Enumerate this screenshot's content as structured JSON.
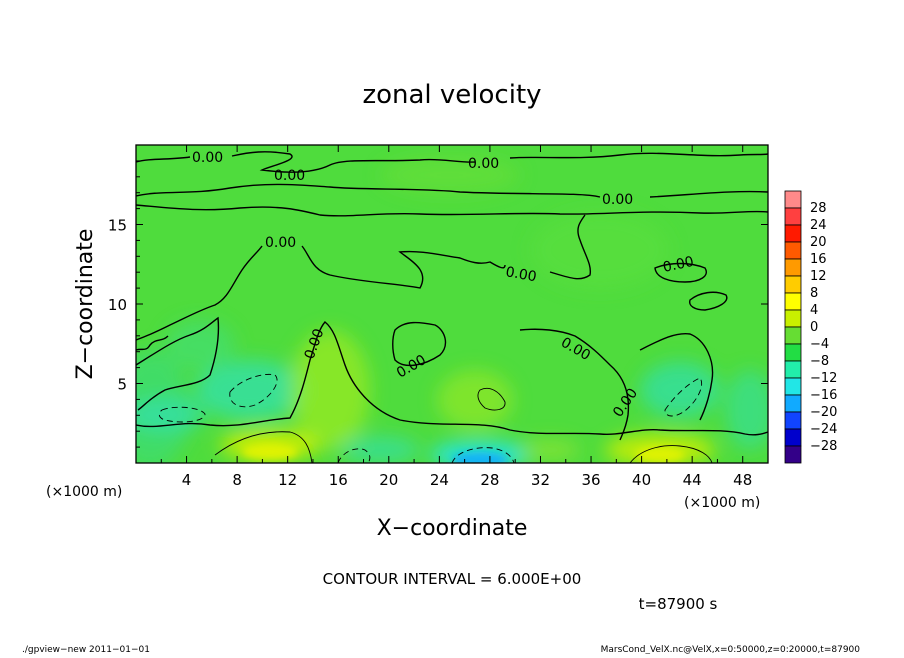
{
  "chart_data": {
    "type": "heatmap",
    "title": "zonal velocity",
    "xlabel": "X−coordinate",
    "ylabel": "Z−coordinate",
    "x_unit": "(×1000 m)",
    "y_unit": "(×1000 m)",
    "xlim": [
      0,
      50
    ],
    "ylim": [
      0,
      20
    ],
    "x_ticks": [
      "4",
      "8",
      "12",
      "16",
      "20",
      "24",
      "28",
      "32",
      "36",
      "40",
      "44",
      "48"
    ],
    "y_ticks": [
      "5",
      "10",
      "15"
    ],
    "contour_labels": [
      "0.00",
      "0.00",
      "0.00",
      "0.00",
      "0.00",
      "0.00",
      "0.00",
      "0.00",
      "0.00",
      "0.00",
      "0.00",
      "0.00"
    ],
    "contour_interval_text": "CONTOUR INTERVAL = 6.000E+00",
    "time_text": "t=87900 s",
    "colorbar": {
      "labels": [
        "28",
        "24",
        "20",
        "16",
        "12",
        "8",
        "4",
        "0",
        "−4",
        "−8",
        "−12",
        "−16",
        "−20",
        "−24",
        "−28"
      ],
      "colors": [
        "#ff8a8a",
        "#ff4040",
        "#ff1a00",
        "#ff5a00",
        "#ff9a00",
        "#ffcc00",
        "#ffff00",
        "#c8f000",
        "#66dd33",
        "#22dd44",
        "#22eeaa",
        "#22e6e6",
        "#11aaff",
        "#1144ff",
        "#0000cc",
        "#330088"
      ]
    },
    "fields": [
      {
        "name": "main field",
        "value_range": [
          -4,
          4
        ]
      },
      {
        "name": "strong negative region",
        "x_range": [
          24,
          28
        ],
        "z_range": [
          0,
          1
        ],
        "value": -6
      }
    ]
  },
  "footer": {
    "left": "./gpview−new  2011−01−01",
    "right": "MarsCond_VelX.nc@VelX,x=0:50000,z=0:20000,t=87900"
  },
  "colors": {
    "background": "#ffffff",
    "field_green": "#4fdc3d",
    "field_yellow": "#c8f000",
    "field_cyan": "#2ee0a0",
    "axes": "#000000"
  }
}
